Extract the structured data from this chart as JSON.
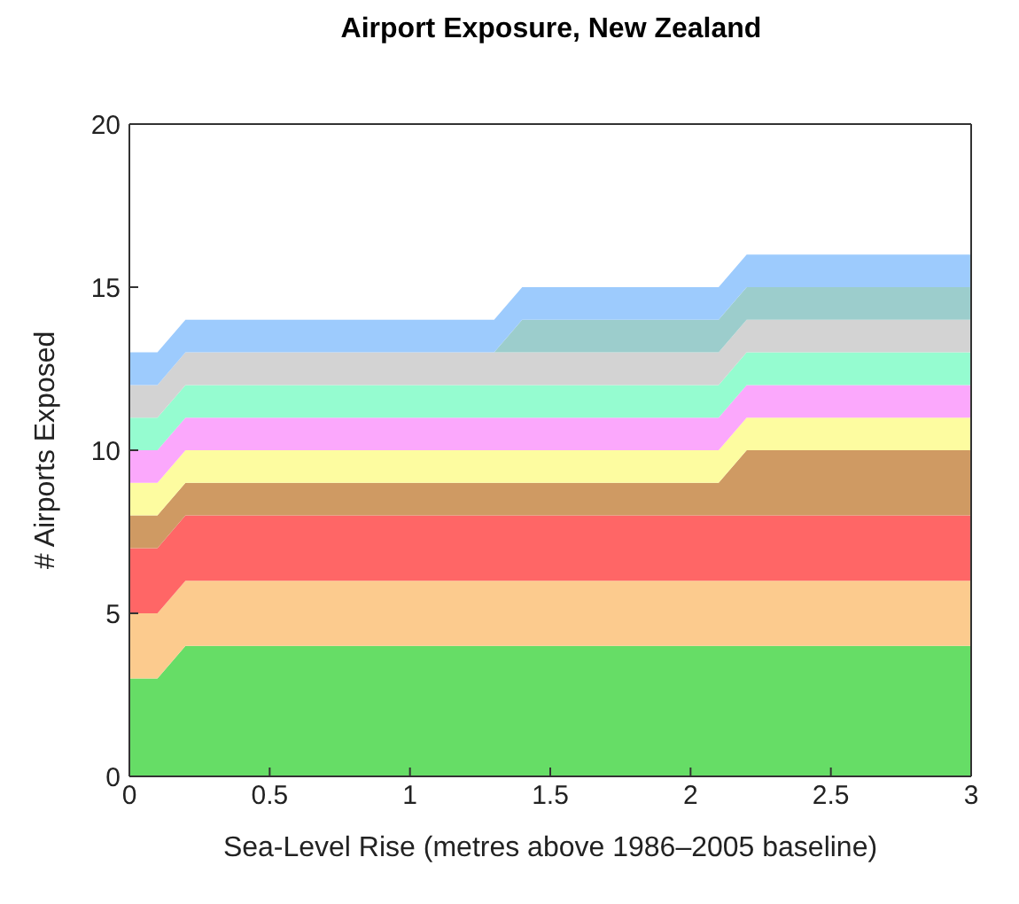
{
  "chart_data": {
    "type": "area",
    "stacked": true,
    "title": "Airport Exposure, New Zealand",
    "xlabel": "Sea-Level Rise (metres above 1986–2005 baseline)",
    "ylabel": "# Airports Exposed",
    "x": [
      0,
      0.1,
      0.2,
      1.3,
      1.4,
      2.1,
      2.2,
      3
    ],
    "xlim": [
      0,
      3
    ],
    "xticks": [
      0,
      0.5,
      1,
      1.5,
      2,
      2.5,
      3
    ],
    "ylim": [
      0,
      20
    ],
    "yticks": [
      0,
      5,
      10,
      15,
      20
    ],
    "grid": false,
    "legend": false,
    "series": [
      {
        "color": "#66dd66",
        "values": [
          3,
          3,
          4,
          4,
          4,
          4,
          4,
          4
        ]
      },
      {
        "color": "#fccb8e",
        "values": [
          2,
          2,
          2,
          2,
          2,
          2,
          2,
          2
        ]
      },
      {
        "color": "#ff6666",
        "values": [
          2,
          2,
          2,
          2,
          2,
          2,
          2,
          2
        ]
      },
      {
        "color": "#cf9a63",
        "values": [
          1,
          1,
          1,
          1,
          1,
          1,
          2,
          2
        ]
      },
      {
        "color": "#fdfca0",
        "values": [
          1,
          1,
          1,
          1,
          1,
          1,
          1,
          1
        ]
      },
      {
        "color": "#fba8fc",
        "values": [
          1,
          1,
          1,
          1,
          1,
          1,
          1,
          1
        ]
      },
      {
        "color": "#95fcd0",
        "values": [
          1,
          1,
          1,
          1,
          1,
          1,
          1,
          1
        ]
      },
      {
        "color": "#d3d3d3",
        "values": [
          1,
          1,
          1,
          1,
          1,
          1,
          1,
          1
        ]
      },
      {
        "color": "#9ccdcc",
        "values": [
          0,
          0,
          0,
          0,
          1,
          1,
          1,
          1
        ]
      },
      {
        "color": "#9dcbfd",
        "values": [
          1,
          1,
          1,
          1,
          1,
          1,
          1,
          1
        ]
      }
    ]
  }
}
